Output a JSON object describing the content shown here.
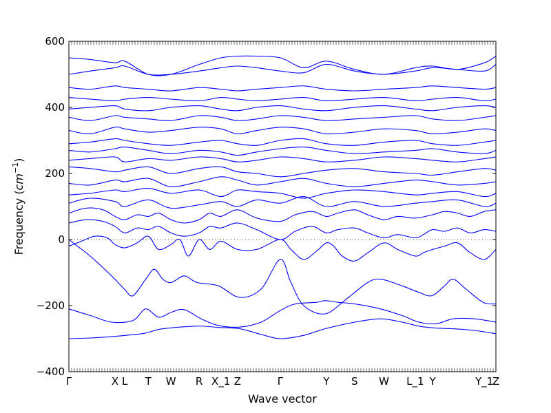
{
  "chart_data": {
    "type": "line",
    "title": "",
    "xlabel": "Wave vector",
    "ylabel_parts": {
      "prefix": "Frequency (",
      "unit": "cm",
      "exponent": "−1",
      "suffix": ")"
    },
    "ylim": [
      -400,
      600
    ],
    "yticks": [
      -400,
      -200,
      0,
      200,
      400,
      600
    ],
    "xlim": [
      0,
      100
    ],
    "grid": false,
    "zero_reference_line": true,
    "line_color": "#0000ff",
    "high_symmetry_points": [
      {
        "label": "Γ",
        "x": 0
      },
      {
        "label": "X",
        "x": 10.8
      },
      {
        "label": "L",
        "x": 13.1
      },
      {
        "label": "T",
        "x": 18.6
      },
      {
        "label": "W",
        "x": 23.9
      },
      {
        "label": "R",
        "x": 30.5
      },
      {
        "label": "X_1",
        "x": 35.6
      },
      {
        "label": "Z",
        "x": 39.5
      },
      {
        "label": "Γ",
        "x": 49.5
      },
      {
        "label": "Y",
        "x": 60.3
      },
      {
        "label": "S",
        "x": 66.9
      },
      {
        "label": "W",
        "x": 73.8
      },
      {
        "label": "L_1",
        "x": 81.1
      },
      {
        "label": "Y",
        "x": 85.2
      },
      {
        "label": "Y_1",
        "x": 97.3
      },
      {
        "label": "Z",
        "x": 100
      }
    ],
    "series": [
      {
        "x": [
          0,
          5,
          10,
          15,
          18,
          22,
          30,
          35,
          40,
          45,
          49.5,
          55,
          60,
          67,
          73,
          78,
          82,
          86,
          90,
          95,
          100
        ],
        "y": [
          -300,
          -298,
          -294,
          -288,
          -283,
          -270,
          -262,
          -266,
          -270,
          -287,
          -300,
          -290,
          -270,
          -250,
          -240,
          -250,
          -262,
          -268,
          -270,
          -275,
          -285
        ]
      },
      {
        "x": [
          0,
          5,
          10,
          15,
          18,
          21,
          24,
          27,
          31,
          35,
          40,
          45,
          49.5,
          53,
          58,
          60,
          63,
          67,
          73,
          78,
          82,
          86,
          90,
          95,
          100
        ],
        "y": [
          -210,
          -230,
          -250,
          -245,
          -210,
          -235,
          -220,
          -212,
          -240,
          -260,
          -265,
          -250,
          -215,
          -195,
          -190,
          -185,
          -190,
          -195,
          -210,
          -230,
          -250,
          -255,
          -240,
          -240,
          -250
        ]
      },
      {
        "x": [
          0,
          2,
          5,
          10,
          13,
          15,
          18,
          20,
          22,
          24,
          27,
          30,
          35,
          40,
          45,
          49.5,
          52,
          55,
          60,
          65,
          70,
          73,
          78,
          82,
          85,
          88,
          90,
          93,
          97,
          100
        ],
        "y": [
          0,
          -20,
          -50,
          -110,
          -150,
          -170,
          -120,
          -90,
          -120,
          -130,
          -110,
          -130,
          -140,
          -175,
          -150,
          -60,
          -130,
          -200,
          -225,
          -180,
          -130,
          -120,
          -140,
          -160,
          -170,
          -140,
          -120,
          -150,
          -190,
          -195
        ]
      },
      {
        "x": [
          0,
          3,
          6,
          9,
          10.8,
          13.1,
          16,
          18.6,
          21,
          23.9,
          26,
          28,
          30.5,
          33,
          35.6,
          39.5,
          44,
          49.5,
          52,
          55,
          58,
          60.3,
          62,
          64,
          66.9,
          70,
          73.8,
          77,
          81.1,
          83,
          85.2,
          88,
          91,
          94,
          97.3,
          100
        ],
        "y": [
          -20,
          -5,
          10,
          5,
          -15,
          -25,
          -10,
          10,
          -30,
          -15,
          0,
          -50,
          0,
          -30,
          -5,
          -30,
          -30,
          0,
          -30,
          -60,
          -35,
          -10,
          -20,
          -50,
          -65,
          -40,
          -10,
          -30,
          -50,
          -40,
          -30,
          -20,
          -10,
          -40,
          -60,
          -30
        ]
      },
      {
        "x": [
          0,
          4,
          8,
          10.8,
          13.1,
          16,
          18.6,
          21,
          23.9,
          27,
          30.5,
          33,
          35.6,
          39.5,
          44,
          49.5,
          53,
          57,
          60.3,
          63,
          66.9,
          70,
          73.8,
          77,
          81.1,
          83,
          85.2,
          88,
          91,
          94,
          97.3,
          100
        ],
        "y": [
          50,
          60,
          55,
          40,
          20,
          35,
          30,
          40,
          20,
          10,
          20,
          40,
          35,
          50,
          30,
          0,
          25,
          40,
          20,
          30,
          35,
          20,
          5,
          15,
          5,
          15,
          30,
          25,
          35,
          20,
          30,
          25
        ]
      },
      {
        "x": [
          0,
          4,
          8,
          10.8,
          13.1,
          16,
          18.6,
          21,
          23.9,
          27,
          30.5,
          33,
          35.6,
          39.5,
          44,
          49.5,
          53,
          57,
          60.3,
          63,
          66.9,
          70,
          73.8,
          77,
          81.1,
          85.2,
          88,
          91,
          94,
          97.3,
          100
        ],
        "y": [
          80,
          95,
          90,
          70,
          60,
          75,
          70,
          80,
          60,
          50,
          60,
          80,
          70,
          90,
          65,
          55,
          75,
          85,
          70,
          80,
          90,
          75,
          60,
          70,
          65,
          75,
          85,
          80,
          70,
          85,
          90
        ]
      },
      {
        "x": [
          0,
          5,
          10.8,
          13.1,
          18.6,
          23.9,
          30.5,
          35.6,
          39.5,
          44,
          49.5,
          55,
          60.3,
          66.9,
          73.8,
          81.1,
          85.2,
          91,
          97.3,
          100
        ],
        "y": [
          110,
          125,
          115,
          100,
          120,
          95,
          105,
          115,
          100,
          120,
          110,
          130,
          100,
          115,
          100,
          110,
          115,
          120,
          100,
          110
        ]
      },
      {
        "x": [
          0,
          5,
          10.8,
          13.1,
          18.6,
          23.9,
          30.5,
          35.6,
          39.5,
          44,
          49.5,
          55,
          60.3,
          66.9,
          73.8,
          81.1,
          85.2,
          91,
          97.3,
          100
        ],
        "y": [
          135,
          140,
          150,
          145,
          155,
          140,
          150,
          130,
          150,
          145,
          140,
          125,
          140,
          150,
          145,
          135,
          140,
          145,
          130,
          140
        ]
      },
      {
        "x": [
          0,
          5,
          10.8,
          13.1,
          18.6,
          23.9,
          30.5,
          35.6,
          39.5,
          44,
          49.5,
          55,
          60.3,
          66.9,
          73.8,
          81.1,
          85.2,
          91,
          97.3,
          100
        ],
        "y": [
          170,
          165,
          180,
          175,
          185,
          160,
          175,
          190,
          180,
          165,
          175,
          185,
          170,
          160,
          170,
          180,
          175,
          165,
          170,
          175
        ]
      },
      {
        "x": [
          0,
          5,
          10.8,
          13.1,
          18.6,
          23.9,
          30.5,
          35.6,
          39.5,
          44,
          49.5,
          55,
          60.3,
          66.9,
          73.8,
          81.1,
          85.2,
          91,
          97.3,
          100
        ],
        "y": [
          220,
          215,
          205,
          210,
          220,
          200,
          215,
          220,
          205,
          200,
          190,
          200,
          210,
          215,
          205,
          200,
          195,
          205,
          215,
          210
        ]
      },
      {
        "x": [
          0,
          5,
          10.8,
          13.1,
          18.6,
          23.9,
          30.5,
          35.6,
          39.5,
          44,
          49.5,
          55,
          60.3,
          66.9,
          73.8,
          81.1,
          85.2,
          91,
          97.3,
          100
        ],
        "y": [
          240,
          245,
          250,
          235,
          245,
          240,
          250,
          245,
          235,
          240,
          250,
          245,
          235,
          240,
          250,
          245,
          240,
          235,
          245,
          250
        ]
      },
      {
        "x": [
          0,
          5,
          10.8,
          13.1,
          18.6,
          23.9,
          30.5,
          35.6,
          39.5,
          44,
          49.5,
          55,
          60.3,
          66.9,
          73.8,
          81.1,
          85.2,
          91,
          97.3,
          100
        ],
        "y": [
          270,
          265,
          275,
          280,
          270,
          260,
          270,
          265,
          255,
          265,
          275,
          280,
          270,
          260,
          265,
          270,
          275,
          265,
          260,
          270
        ]
      },
      {
        "x": [
          0,
          5,
          10.8,
          13.1,
          18.6,
          23.9,
          30.5,
          35.6,
          39.5,
          44,
          49.5,
          55,
          60.3,
          66.9,
          73.8,
          81.1,
          85.2,
          91,
          97.3,
          100
        ],
        "y": [
          290,
          295,
          305,
          300,
          290,
          285,
          295,
          300,
          290,
          285,
          300,
          305,
          290,
          285,
          295,
          300,
          290,
          285,
          295,
          300
        ]
      },
      {
        "x": [
          0,
          5,
          10.8,
          13.1,
          18.6,
          23.9,
          30.5,
          35.6,
          39.5,
          44,
          49.5,
          55,
          60.3,
          66.9,
          73.8,
          81.1,
          85.2,
          91,
          97.3,
          100
        ],
        "y": [
          330,
          320,
          340,
          335,
          325,
          330,
          340,
          335,
          320,
          330,
          340,
          335,
          320,
          325,
          335,
          330,
          320,
          325,
          335,
          330
        ]
      },
      {
        "x": [
          0,
          5,
          10.8,
          13.1,
          18.6,
          23.9,
          30.5,
          35.6,
          39.5,
          44,
          49.5,
          55,
          60.3,
          66.9,
          73.8,
          81.1,
          85.2,
          91,
          97.3,
          100
        ],
        "y": [
          370,
          360,
          375,
          370,
          365,
          360,
          375,
          370,
          360,
          365,
          375,
          370,
          360,
          365,
          370,
          375,
          365,
          360,
          370,
          375
        ]
      },
      {
        "x": [
          0,
          5,
          10.8,
          13.1,
          18.6,
          23.9,
          30.5,
          35.6,
          39.5,
          44,
          49.5,
          55,
          60.3,
          66.9,
          73.8,
          81.1,
          85.2,
          91,
          97.3,
          100
        ],
        "y": [
          395,
          400,
          405,
          395,
          390,
          400,
          405,
          395,
          390,
          400,
          405,
          395,
          390,
          400,
          405,
          395,
          390,
          400,
          405,
          400
        ]
      },
      {
        "x": [
          0,
          5,
          10.8,
          13.1,
          18.6,
          23.9,
          30.5,
          35.6,
          39.5,
          44,
          49.5,
          55,
          60.3,
          66.9,
          73.8,
          81.1,
          85.2,
          91,
          97.3,
          100
        ],
        "y": [
          430,
          425,
          420,
          425,
          430,
          425,
          420,
          430,
          425,
          420,
          425,
          430,
          420,
          425,
          430,
          420,
          425,
          430,
          420,
          425
        ]
      },
      {
        "x": [
          0,
          5,
          10.8,
          13.1,
          18.6,
          23.9,
          30.5,
          35.6,
          39.5,
          44,
          49.5,
          55,
          60.3,
          66.9,
          73.8,
          81.1,
          85.2,
          91,
          97.3,
          100
        ],
        "y": [
          460,
          455,
          465,
          460,
          455,
          450,
          460,
          455,
          450,
          455,
          460,
          465,
          455,
          450,
          455,
          460,
          465,
          460,
          455,
          460
        ]
      },
      {
        "x": [
          0,
          5,
          10.8,
          13.1,
          18.6,
          23.9,
          30.5,
          35.6,
          39.5,
          44,
          49.5,
          55,
          60.3,
          66.9,
          73.8,
          81.1,
          85.2,
          91,
          97.3,
          100
        ],
        "y": [
          550,
          545,
          535,
          540,
          500,
          500,
          530,
          550,
          555,
          555,
          550,
          520,
          540,
          515,
          500,
          520,
          525,
          515,
          535,
          555
        ]
      },
      {
        "x": [
          0,
          5,
          10.8,
          13.1,
          18.6,
          23.9,
          30.5,
          35.6,
          39.5,
          44,
          49.5,
          55,
          60.3,
          66.9,
          73.8,
          81.1,
          85.2,
          91,
          97.3,
          100
        ],
        "y": [
          500,
          510,
          520,
          525,
          500,
          500,
          510,
          520,
          525,
          520,
          510,
          505,
          530,
          510,
          500,
          510,
          520,
          515,
          510,
          530
        ]
      }
    ]
  }
}
